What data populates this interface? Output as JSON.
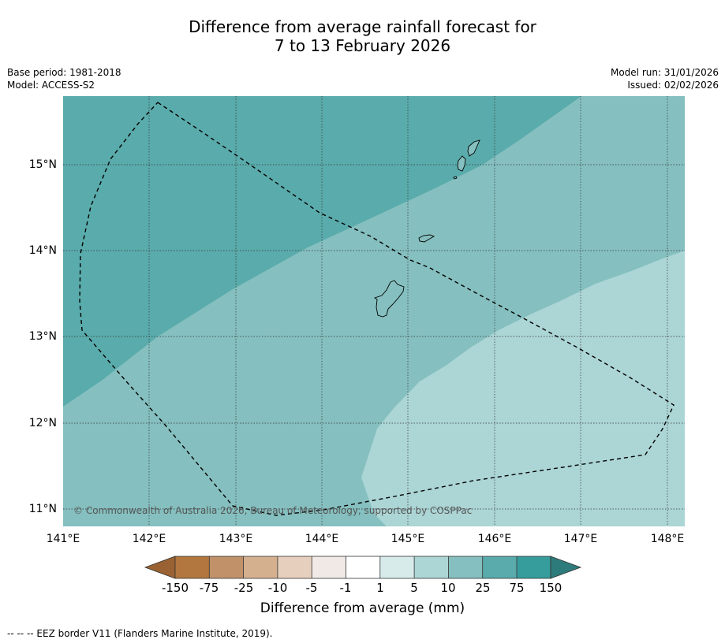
{
  "title": {
    "line1": "Difference from average rainfall forecast for",
    "line2": "7 to 13 February 2026"
  },
  "meta": {
    "base_period": "Base period: 1981-2018",
    "model": "Model: ACCESS-S2",
    "model_run": "Model run: 31/01/2026",
    "issued": "Issued: 02/02/2026"
  },
  "map": {
    "latitude_labels": [
      "15°N",
      "14°N",
      "13°N",
      "12°N",
      "11°N"
    ],
    "longitude_labels": [
      "141°E",
      "142°E",
      "143°E",
      "144°E",
      "145°E",
      "146°E",
      "147°E",
      "148°E"
    ],
    "copyright": "© Commonwealth of Australia 2026, Bureau of Meteorology, supported by COSPPac",
    "zone_colors": {
      "25_to_75": "#5aabab",
      "10_to_25": "#85bfbf",
      "5_to_10": "#acd5d5"
    }
  },
  "colorbar": {
    "tick_labels": [
      "-150",
      "-75",
      "-25",
      "-10",
      "-5",
      "-1",
      "1",
      "5",
      "10",
      "25",
      "75",
      "150"
    ],
    "colors": [
      "#9a6232",
      "#b2773e",
      "#c1916a",
      "#d4b08f",
      "#e7cfbd",
      "#f0e9e5",
      "#ffffff",
      "#d7ebea",
      "#acd5d5",
      "#85bfbf",
      "#5aabab",
      "#369c9c",
      "#2e7b7b"
    ],
    "title": "Difference from average (mm)"
  },
  "footer": {
    "legend": "--  --  -- EEZ border V11 (Flanders Marine Institute, 2019)."
  }
}
